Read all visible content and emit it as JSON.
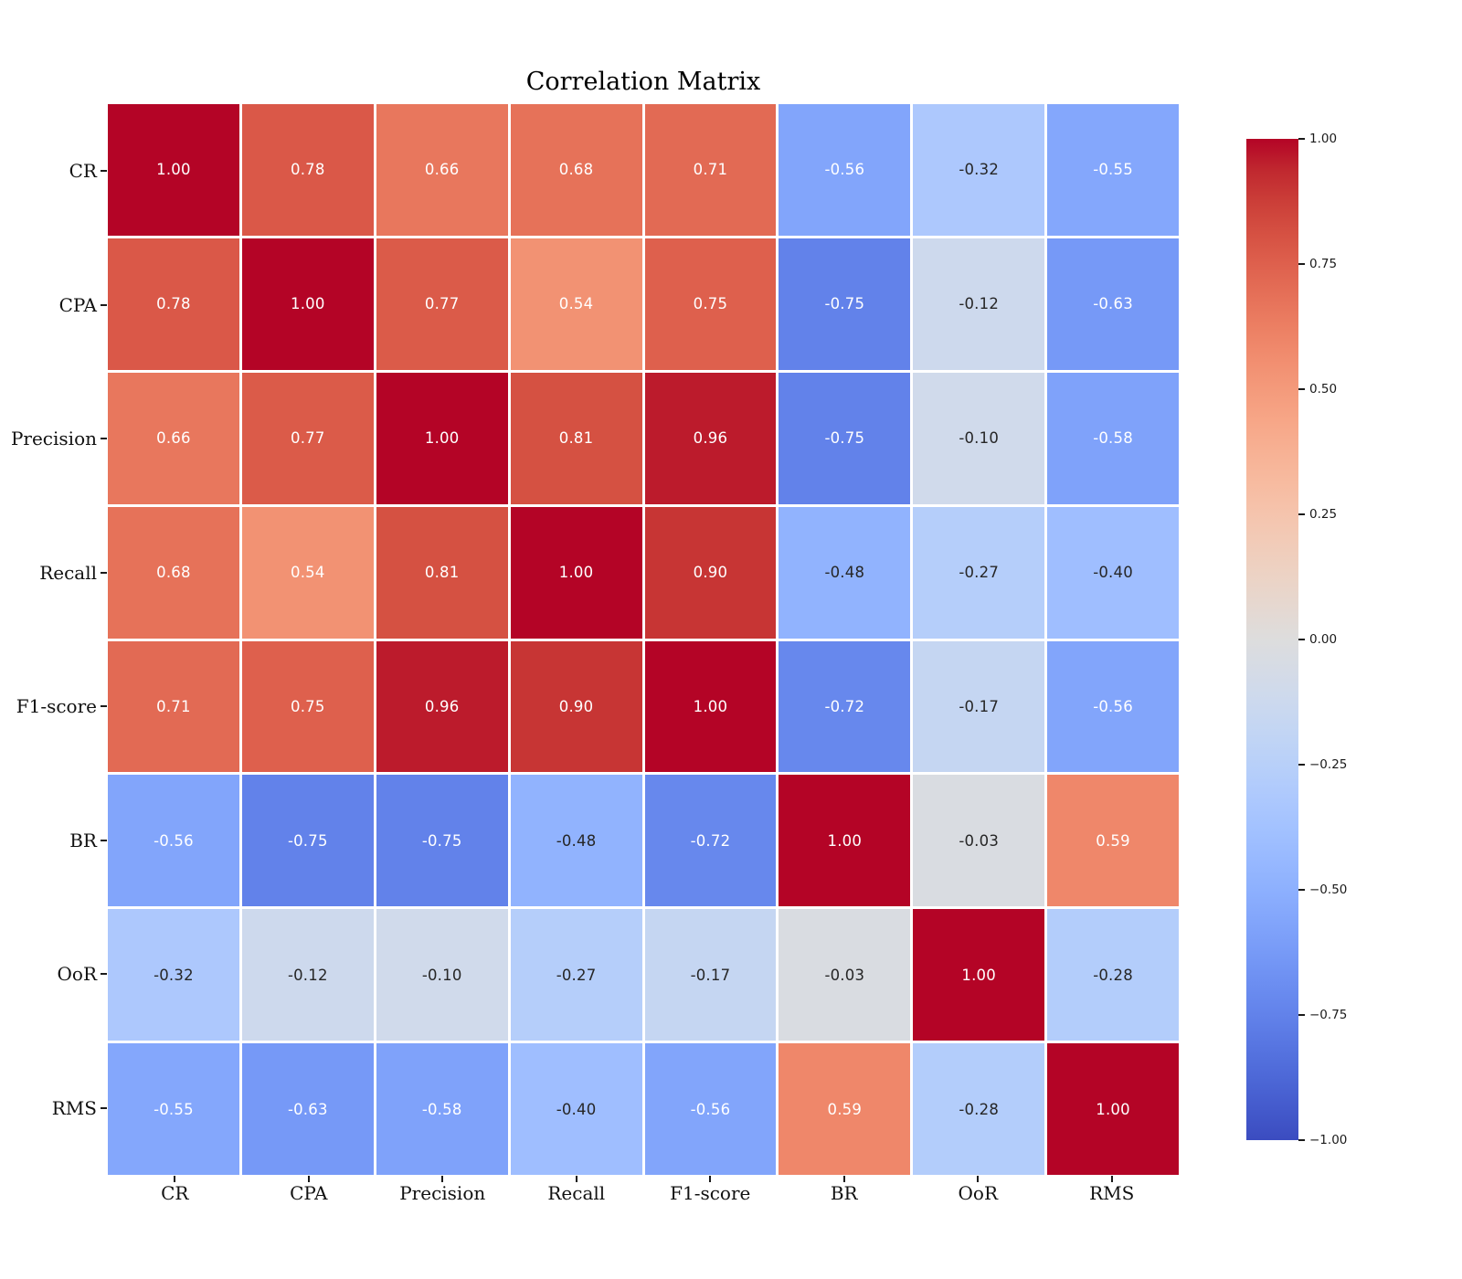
{
  "title": "Correlation Matrix",
  "chart_data": {
    "type": "heatmap",
    "title": "Correlation Matrix",
    "x_labels": [
      "CR",
      "CPA",
      "Precision",
      "Recall",
      "F1-score",
      "BR",
      "OoR",
      "RMS"
    ],
    "y_labels": [
      "CR",
      "CPA",
      "Precision",
      "Recall",
      "F1-score",
      "BR",
      "OoR",
      "RMS"
    ],
    "matrix": [
      [
        1.0,
        0.78,
        0.66,
        0.68,
        0.71,
        -0.56,
        -0.32,
        -0.55
      ],
      [
        0.78,
        1.0,
        0.77,
        0.54,
        0.75,
        -0.75,
        -0.12,
        -0.63
      ],
      [
        0.66,
        0.77,
        1.0,
        0.81,
        0.96,
        -0.75,
        -0.1,
        -0.58
      ],
      [
        0.68,
        0.54,
        0.81,
        1.0,
        0.9,
        -0.48,
        -0.27,
        -0.4
      ],
      [
        0.71,
        0.75,
        0.96,
        0.9,
        1.0,
        -0.72,
        -0.17,
        -0.56
      ],
      [
        -0.56,
        -0.75,
        -0.75,
        -0.48,
        -0.72,
        1.0,
        -0.03,
        0.59
      ],
      [
        -0.32,
        -0.12,
        -0.1,
        -0.27,
        -0.17,
        -0.03,
        1.0,
        -0.28
      ],
      [
        -0.55,
        -0.63,
        -0.58,
        -0.4,
        -0.56,
        0.59,
        -0.28,
        1.0
      ]
    ],
    "value_decimals": 2,
    "vmin": -1.0,
    "vmax": 1.0,
    "colormap": "coolwarm",
    "color_min": "#3b4cc0",
    "color_mid": "#dddddd",
    "color_max": "#b40426",
    "annotation_color_light": "#ffffff",
    "annotation_color_dark": "#262626",
    "annotation_white_threshold": 0.5,
    "colorbar_tick_labels": [
      "1.00",
      "0.75",
      "0.50",
      "0.25",
      "0.00",
      "−0.25",
      "−0.50",
      "−0.75",
      "−1.00"
    ],
    "legend_position": "right-colorbar",
    "grid": false
  }
}
